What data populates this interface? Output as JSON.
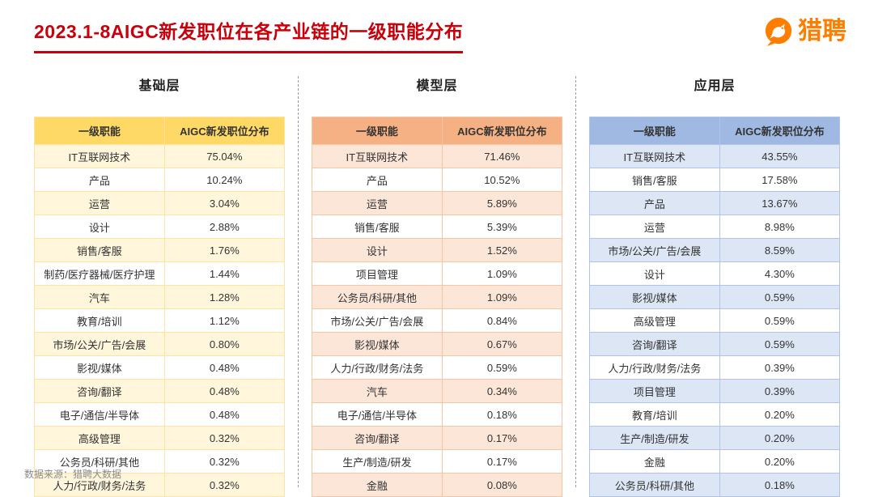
{
  "page": {
    "title": "2023.1-8AIGC新发职位在各产业链的一级职能分布",
    "title_color": "#C9000B",
    "source": "数据来源：猎聘大数据",
    "logo": {
      "text": "猎聘",
      "brand_color": "#FF7E00"
    }
  },
  "chart_data": [
    {
      "type": "table",
      "title": "基础层",
      "columns": [
        "一级职能",
        "AIGC新发职位分布"
      ],
      "rows": [
        [
          "IT互联网技术",
          "75.04%"
        ],
        [
          "产品",
          "10.24%"
        ],
        [
          "运营",
          "3.04%"
        ],
        [
          "设计",
          "2.88%"
        ],
        [
          "销售/客服",
          "1.76%"
        ],
        [
          "制药/医疗器械/医疗护理",
          "1.44%"
        ],
        [
          "汽车",
          "1.28%"
        ],
        [
          "教育/培训",
          "1.12%"
        ],
        [
          "市场/公关/广告/会展",
          "0.80%"
        ],
        [
          "影视/媒体",
          "0.48%"
        ],
        [
          "咨询/翻译",
          "0.48%"
        ],
        [
          "电子/通信/半导体",
          "0.48%"
        ],
        [
          "高级管理",
          "0.32%"
        ],
        [
          "公务员/科研/其他",
          "0.32%"
        ],
        [
          "人力/行政/财务/法务",
          "0.32%"
        ]
      ],
      "theme": {
        "header_bg": "#FFD966",
        "row_alt_bg": "#FFF6DC",
        "border": "#FFE3A0"
      }
    },
    {
      "type": "table",
      "title": "模型层",
      "columns": [
        "一级职能",
        "AIGC新发职位分布"
      ],
      "rows": [
        [
          "IT互联网技术",
          "71.46%"
        ],
        [
          "产品",
          "10.52%"
        ],
        [
          "运营",
          "5.89%"
        ],
        [
          "销售/客服",
          "5.39%"
        ],
        [
          "设计",
          "1.52%"
        ],
        [
          "项目管理",
          "1.09%"
        ],
        [
          "公务员/科研/其他",
          "1.09%"
        ],
        [
          "市场/公关/广告/会展",
          "0.84%"
        ],
        [
          "影视/媒体",
          "0.67%"
        ],
        [
          "人力/行政/财务/法务",
          "0.59%"
        ],
        [
          "汽车",
          "0.34%"
        ],
        [
          "电子/通信/半导体",
          "0.18%"
        ],
        [
          "咨询/翻译",
          "0.17%"
        ],
        [
          "生产/制造/研发",
          "0.17%"
        ],
        [
          "金融",
          "0.08%"
        ]
      ],
      "theme": {
        "header_bg": "#F5B183",
        "row_alt_bg": "#FCE6D8",
        "border": "#F6C6A4"
      }
    },
    {
      "type": "table",
      "title": "应用层",
      "columns": [
        "一级职能",
        "AIGC新发职位分布"
      ],
      "rows": [
        [
          "IT互联网技术",
          "43.55%"
        ],
        [
          "销售/客服",
          "17.58%"
        ],
        [
          "产品",
          "13.67%"
        ],
        [
          "运营",
          "8.98%"
        ],
        [
          "市场/公关/广告/会展",
          "8.59%"
        ],
        [
          "设计",
          "4.30%"
        ],
        [
          "影视/媒体",
          "0.59%"
        ],
        [
          "高级管理",
          "0.59%"
        ],
        [
          "咨询/翻译",
          "0.59%"
        ],
        [
          "人力/行政/财务/法务",
          "0.39%"
        ],
        [
          "项目管理",
          "0.39%"
        ],
        [
          "教育/培训",
          "0.20%"
        ],
        [
          "生产/制造/研发",
          "0.20%"
        ],
        [
          "金融",
          "0.20%"
        ],
        [
          "公务员/科研/其他",
          "0.18%"
        ]
      ],
      "theme": {
        "header_bg": "#9FB9E3",
        "row_alt_bg": "#DCE6F4",
        "border": "#AFC4E8"
      }
    }
  ]
}
